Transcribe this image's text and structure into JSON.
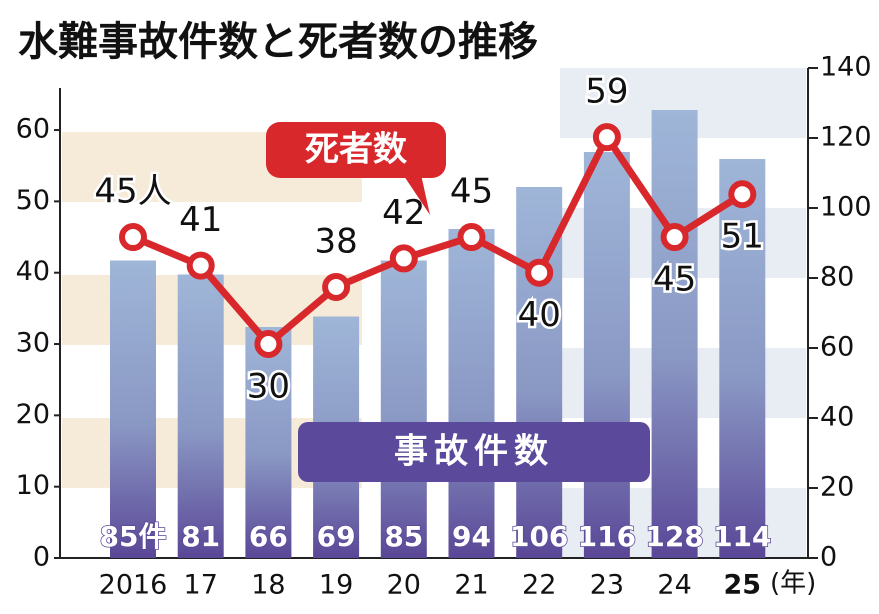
{
  "chart_data": {
    "type": "bar-line",
    "title": "水難事故件数と死者数の推移",
    "categories": [
      "2016",
      "17",
      "18",
      "19",
      "20",
      "21",
      "22",
      "23",
      "24",
      "25"
    ],
    "x_unit": "(年)",
    "series": [
      {
        "name": "事故件数",
        "type": "bar",
        "axis": "y2",
        "color": "#7f9ac4",
        "values": [
          85,
          81,
          66,
          69,
          85,
          94,
          106,
          116,
          128,
          114
        ],
        "value_labels": [
          "85件",
          "81",
          "66",
          "69",
          "85",
          "94",
          "106",
          "116",
          "128",
          "114"
        ]
      },
      {
        "name": "死者数",
        "type": "line",
        "axis": "y",
        "color": "#d8282c",
        "values": [
          45,
          41,
          30,
          38,
          42,
          45,
          40,
          59,
          45,
          51
        ],
        "value_labels": [
          "45人",
          "41",
          "30",
          "38",
          "42",
          "45",
          "40",
          "59",
          "45",
          "51"
        ]
      }
    ],
    "ylim": [
      0,
      68.7
    ],
    "yticks": [
      0,
      10,
      20,
      30,
      40,
      50,
      60
    ],
    "y2lim": [
      0,
      140
    ],
    "y2ticks": [
      0,
      20,
      40,
      60,
      80,
      100,
      120,
      140
    ]
  }
}
